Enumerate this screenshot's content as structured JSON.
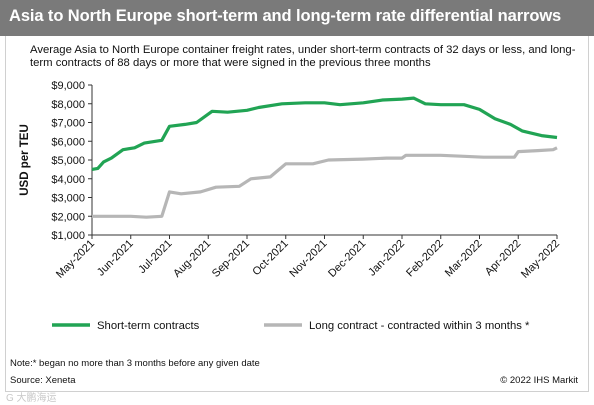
{
  "header": {
    "title": "Asia to North Europe short-term and long-term rate differential narrows"
  },
  "subtitle": "Average Asia to North Europe container freight rates, under short-term contracts of 32 days or less, and long-term contracts of 88 days or more that were signed in the previous three months",
  "footer": {
    "note": "Note:* began no more than 3 months before any given date",
    "source": "Source: Xeneta",
    "copyright": "© 2022 IHS Markit",
    "watermark": "G 大鹏海运"
  },
  "colors": {
    "short": "#21a454",
    "long": "#b6b6b6",
    "header": "#7a7a7a"
  },
  "chart_data": {
    "type": "line",
    "title": "Asia to North Europe short-term and long-term rate differential narrows",
    "ylabel": "USD per TEU",
    "xlabel": "",
    "ylim": [
      1000,
      9000
    ],
    "yticks": [
      "$1,000",
      "$2,000",
      "$3,000",
      "$4,000",
      "$5,000",
      "$6,000",
      "$7,000",
      "$8,000",
      "$9,000"
    ],
    "xticks": [
      "May-2021",
      "Jun-2021",
      "Jul-2021",
      "Aug-2021",
      "Sep-2021",
      "Oct-2021",
      "Nov-2021",
      "Dec-2021",
      "Jan-2022",
      "Feb-2022",
      "Mar-2022",
      "Apr-2022",
      "May-2022"
    ],
    "grid": false,
    "legend_position": "bottom",
    "series": [
      {
        "name": "Short-term contracts",
        "color": "#21a454",
        "points": [
          [
            0,
            4500
          ],
          [
            0.15,
            4550
          ],
          [
            0.3,
            4900
          ],
          [
            0.5,
            5100
          ],
          [
            0.8,
            5550
          ],
          [
            1.1,
            5650
          ],
          [
            1.35,
            5900
          ],
          [
            1.8,
            6050
          ],
          [
            2.0,
            6800
          ],
          [
            2.4,
            6900
          ],
          [
            2.7,
            7000
          ],
          [
            3.1,
            7600
          ],
          [
            3.5,
            7550
          ],
          [
            4.0,
            7650
          ],
          [
            4.3,
            7800
          ],
          [
            4.9,
            8000
          ],
          [
            5.5,
            8050
          ],
          [
            6.0,
            8050
          ],
          [
            6.4,
            7950
          ],
          [
            7.0,
            8050
          ],
          [
            7.5,
            8200
          ],
          [
            8.0,
            8250
          ],
          [
            8.3,
            8300
          ],
          [
            8.6,
            8000
          ],
          [
            9.0,
            7950
          ],
          [
            9.6,
            7950
          ],
          [
            10.0,
            7700
          ],
          [
            10.4,
            7200
          ],
          [
            10.8,
            6900
          ],
          [
            11.1,
            6550
          ],
          [
            11.6,
            6300
          ],
          [
            12.0,
            6200
          ]
        ]
      },
      {
        "name": "Long contract - contracted within 3 months *",
        "color": "#b6b6b6",
        "points": [
          [
            0,
            2000
          ],
          [
            1.0,
            2000
          ],
          [
            1.4,
            1950
          ],
          [
            1.8,
            2000
          ],
          [
            2.0,
            3300
          ],
          [
            2.3,
            3200
          ],
          [
            2.8,
            3300
          ],
          [
            3.2,
            3550
          ],
          [
            3.8,
            3600
          ],
          [
            4.1,
            4000
          ],
          [
            4.6,
            4100
          ],
          [
            5.0,
            4800
          ],
          [
            5.7,
            4800
          ],
          [
            6.1,
            5000
          ],
          [
            7.0,
            5050
          ],
          [
            7.6,
            5100
          ],
          [
            8.0,
            5100
          ],
          [
            8.1,
            5250
          ],
          [
            9.0,
            5250
          ],
          [
            9.6,
            5200
          ],
          [
            10.1,
            5150
          ],
          [
            10.9,
            5150
          ],
          [
            11.0,
            5450
          ],
          [
            11.5,
            5500
          ],
          [
            11.9,
            5550
          ],
          [
            12.0,
            5650
          ]
        ]
      }
    ]
  }
}
